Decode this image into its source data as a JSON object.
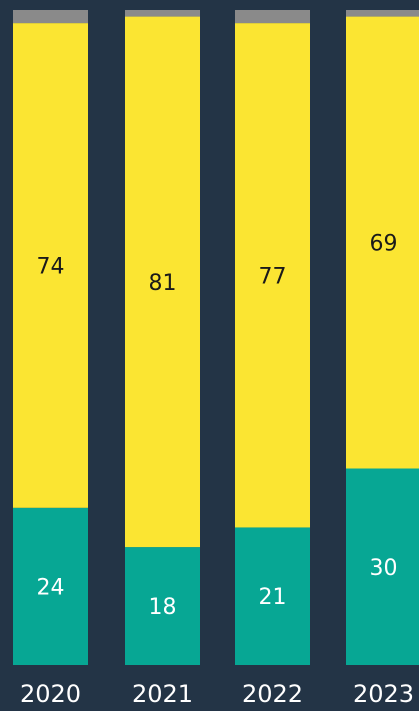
{
  "colors": {
    "background": "#233446",
    "yellow": "#FBE532",
    "teal": "#07A794",
    "grey": "#8A8A8A",
    "label_dark": "#1A1A1A",
    "label_light": "#FFFFFF",
    "axis_text": "#FFFFFF"
  },
  "chart_data": {
    "type": "bar",
    "stacked": true,
    "normalized_percent": true,
    "categories": [
      "2020",
      "2021",
      "2022",
      "2023"
    ],
    "series": [
      {
        "color": "teal",
        "values": [
          24,
          18,
          21,
          30
        ]
      },
      {
        "color": "yellow",
        "values": [
          74,
          81,
          77,
          69
        ]
      },
      {
        "color": "grey",
        "values": [
          2,
          1,
          2,
          1
        ]
      }
    ],
    "data_labels": {
      "bottom": [
        "24",
        "18",
        "21",
        "30"
      ],
      "middle": [
        "74",
        "81",
        "77",
        "69"
      ]
    },
    "title": "",
    "xlabel": "",
    "ylabel": "",
    "ylim": [
      0,
      100
    ],
    "grid": false,
    "legend": "none"
  }
}
